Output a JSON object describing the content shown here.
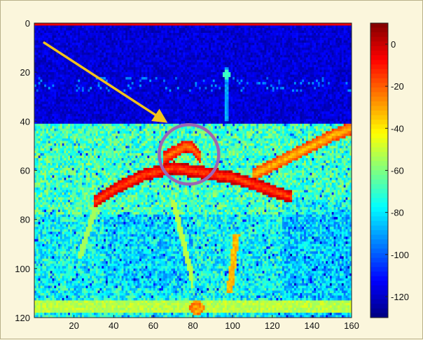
{
  "chart_data": {
    "type": "heatmap",
    "title": "",
    "xlabel": "",
    "ylabel": "",
    "xlim": [
      0,
      160
    ],
    "ylim": [
      0,
      120
    ],
    "y_axis_direction": "down",
    "x_ticks": [
      20,
      40,
      60,
      80,
      100,
      120,
      140,
      160
    ],
    "y_ticks": [
      0,
      20,
      40,
      60,
      80,
      100,
      120
    ],
    "colorbar": {
      "range": [
        -130,
        10
      ],
      "ticks": [
        0,
        -20,
        -40,
        -60,
        -80,
        -100,
        -120
      ],
      "colormap": "jet"
    },
    "colors": {
      "background": "#fbf6dc",
      "arrow": "#f2c21a",
      "circle": "#9a66b5",
      "deep_blue": "#14248c",
      "mid": "#7fd08a",
      "hot": "#e83c10"
    },
    "annotations": [
      {
        "type": "arrow",
        "from": [
          5,
          8
        ],
        "to": [
          66,
          40
        ]
      },
      {
        "type": "circle",
        "center": [
          78,
          53.5
        ],
        "radius_x": 15
      }
    ],
    "features": {
      "top_line_level": -5,
      "upper_region": {
        "y_range": [
          0,
          41
        ],
        "level": -118
      },
      "faint_vertical_line": {
        "x": 97,
        "y_range": [
          18,
          40
        ]
      },
      "bright_point": {
        "x": 97,
        "y": 21,
        "level": -72
      },
      "arch_curves": [
        {
          "points": [
            [
              30,
              73
            ],
            [
              42,
              67
            ],
            [
              55,
              62
            ],
            [
              70,
              59
            ],
            [
              85,
              61
            ],
            [
              100,
              63
            ],
            [
              112,
              66
            ],
            [
              122,
              69
            ],
            [
              130,
              71
            ]
          ],
          "level": -18
        },
        {
          "points": [
            [
              110,
              62
            ],
            [
              125,
              56
            ],
            [
              140,
              50
            ],
            [
              150,
              46
            ],
            [
              160,
              43
            ]
          ],
          "level": -35
        },
        {
          "points": [
            [
              65,
              55
            ],
            [
              72,
              52
            ],
            [
              76,
              50
            ],
            [
              80,
              51
            ],
            [
              84,
              55
            ]
          ],
          "level": -25
        }
      ],
      "bottom_hotspot": {
        "x": 82,
        "y": 116,
        "level": -35
      }
    }
  }
}
